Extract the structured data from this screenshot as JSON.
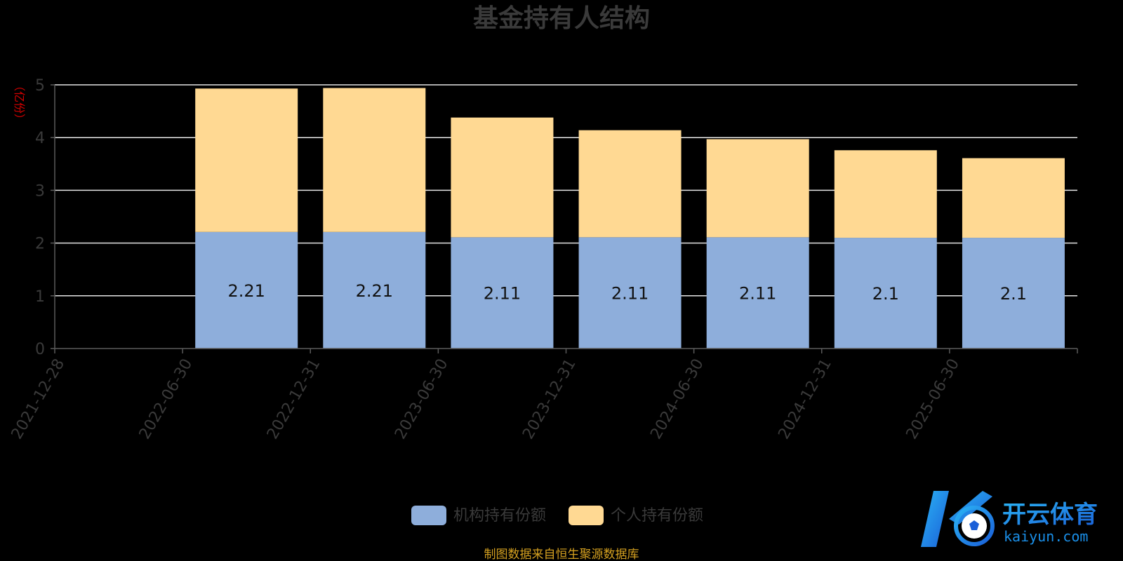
{
  "chart_data": {
    "type": "bar",
    "stacked": true,
    "title": "基金持有人结构",
    "y_unit": "（亿份）",
    "categories": [
      "2021-12-28",
      "2022-06-30",
      "2022-12-31",
      "2023-06-30",
      "2023-12-31",
      "2024-06-30",
      "2024-12-31",
      "2025-06-30"
    ],
    "series": [
      {
        "name": "机构持有份额",
        "color": "#8eaedb",
        "values": [
          0,
          2.21,
          2.21,
          2.11,
          2.11,
          2.11,
          2.1,
          2.1
        ],
        "labels": [
          "",
          "2.21",
          "2.21",
          "2.11",
          "2.11",
          "2.11",
          "2.1",
          "2.1"
        ]
      },
      {
        "name": "个人持有份额",
        "color": "#ffd993",
        "values": [
          0,
          2.72,
          2.73,
          2.27,
          2.03,
          1.86,
          1.66,
          1.51
        ]
      }
    ],
    "ylim": [
      0,
      5
    ],
    "yticks": [
      "0",
      "1",
      "2",
      "3",
      "4",
      "5"
    ],
    "grid": true,
    "legend_position": "bottom-center"
  },
  "source": "制图数据来自恒生聚源数据库",
  "watermark": {
    "cn": "开云体育",
    "en": "kaiyun.com"
  }
}
